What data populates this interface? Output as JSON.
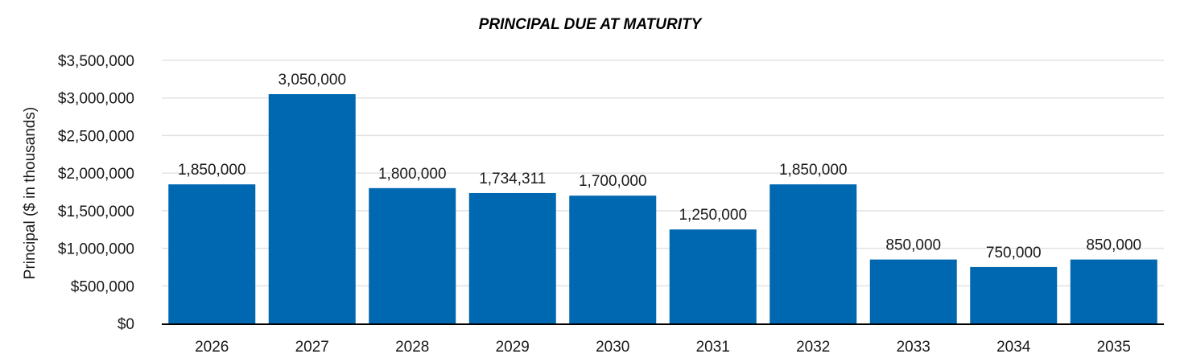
{
  "chart_data": {
    "type": "bar",
    "title": "PRINCIPAL DUE AT MATURITY",
    "xlabel": "",
    "ylabel": "Principal ($ in thousands)",
    "categories": [
      "2026",
      "2027",
      "2028",
      "2029",
      "2030",
      "2031",
      "2032",
      "2033",
      "2034",
      "2035"
    ],
    "values": [
      1850000,
      3050000,
      1800000,
      1734311,
      1700000,
      1250000,
      1850000,
      850000,
      750000,
      850000
    ],
    "data_labels": [
      "1,850,000",
      "3,050,000",
      "1,800,000",
      "1,734,311",
      "1,700,000",
      "1,250,000",
      "1,850,000",
      "850,000",
      "750,000",
      "850,000"
    ],
    "yticks": [
      0,
      500000,
      1000000,
      1500000,
      2000000,
      2500000,
      3000000,
      3500000
    ],
    "ytick_labels": [
      "$0",
      "$500,000",
      "$1,000,000",
      "$1,500,000",
      "$2,000,000",
      "$2,500,000",
      "$3,000,000",
      "$3,500,000"
    ],
    "ylim": [
      0,
      3500000
    ],
    "grid": true,
    "legend": "none",
    "colors": {
      "bar": "#0067b1",
      "grid": "#e3e3e3",
      "axis": "#000000"
    }
  }
}
